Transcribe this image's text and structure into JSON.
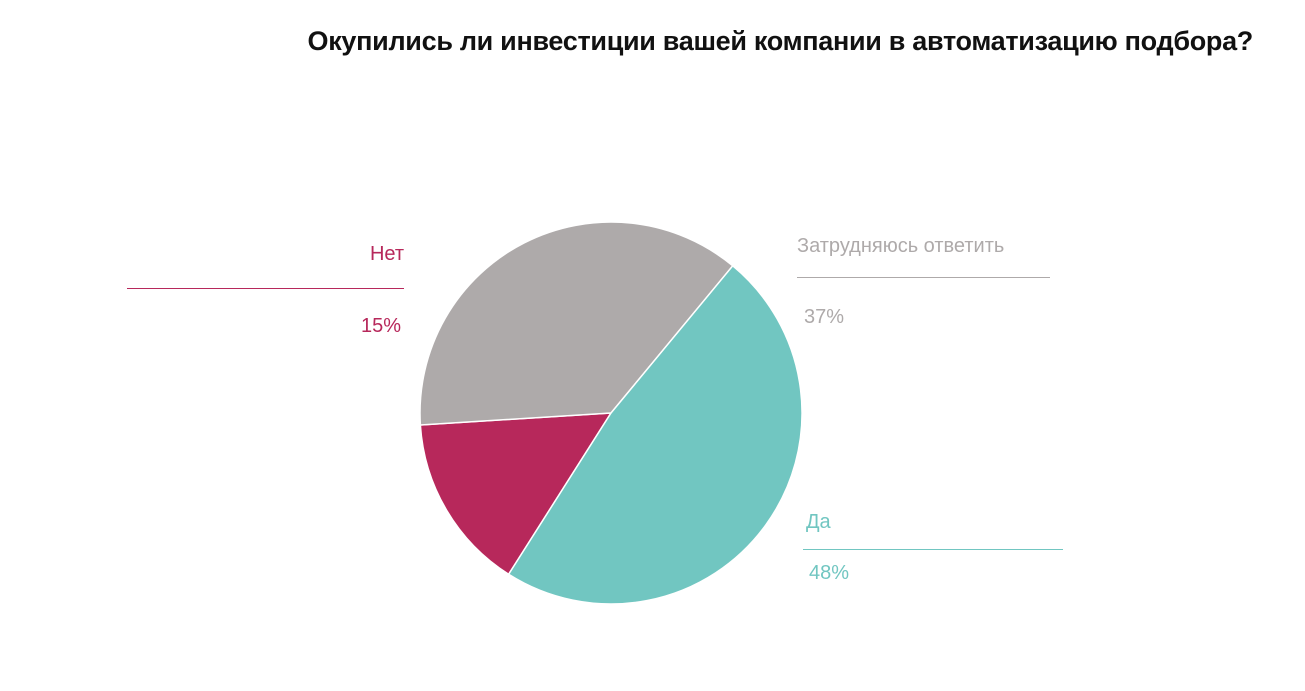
{
  "chart_data": {
    "type": "pie",
    "title": "Окупились ли инвестиции вашей компании в автоматизацию подбора?",
    "slices": [
      {
        "label": "Нет",
        "value": 15,
        "display": "15%",
        "color": "#b7285b"
      },
      {
        "label": "Затрудняюсь ответить",
        "value": 37,
        "display": "37%",
        "color": "#aeaaaa"
      },
      {
        "label": "Да",
        "value": 48,
        "display": "48%",
        "color": "#71c6c1"
      }
    ],
    "unit": "%"
  }
}
